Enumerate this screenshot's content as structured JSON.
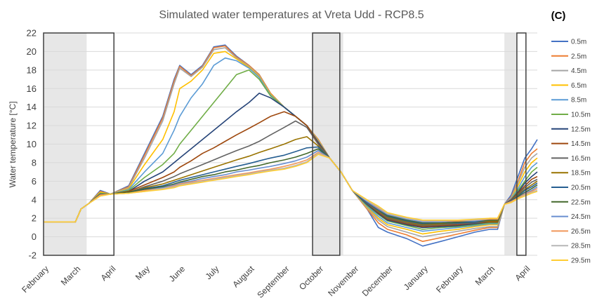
{
  "chart_data": {
    "type": "line",
    "title": "Simulated water temperatures at Vreta Udd - RCP8.5",
    "panel_label": "(C)",
    "xlabel": "",
    "ylabel": "Water temperature [°C]",
    "ylim": [
      -2,
      22
    ],
    "yticks": [
      -2,
      0,
      2,
      4,
      6,
      8,
      10,
      12,
      14,
      16,
      18,
      20,
      22
    ],
    "grid": "horizontal",
    "legend_position": "right",
    "x_unit": "days since start of February",
    "xlim": [
      0,
      435
    ],
    "month_ticks": [
      {
        "label": "February",
        "x": 0
      },
      {
        "label": "March",
        "x": 28
      },
      {
        "label": "April",
        "x": 59
      },
      {
        "label": "May",
        "x": 89
      },
      {
        "label": "June",
        "x": 120
      },
      {
        "label": "July",
        "x": 150
      },
      {
        "label": "August",
        "x": 181
      },
      {
        "label": "September",
        "x": 212
      },
      {
        "label": "October",
        "x": 242
      },
      {
        "label": "November",
        "x": 273
      },
      {
        "label": "December",
        "x": 303
      },
      {
        "label": "January",
        "x": 334
      },
      {
        "label": "February",
        "x": 365
      },
      {
        "label": "March",
        "x": 393
      },
      {
        "label": "April",
        "x": 424
      }
    ],
    "shaded_periods": [
      {
        "x": [
          0,
          38
        ]
      },
      {
        "x": [
          237,
          264
        ]
      },
      {
        "x": [
          406,
          417
        ]
      }
    ],
    "boxed_periods": [
      {
        "x": [
          0,
          62
        ]
      },
      {
        "x": [
          237,
          261
        ]
      },
      {
        "x": [
          417,
          425
        ]
      }
    ],
    "x": [
      0,
      15,
      28,
      33,
      40,
      50,
      59,
      75,
      89,
      105,
      115,
      120,
      130,
      140,
      150,
      160,
      170,
      181,
      190,
      200,
      212,
      222,
      232,
      242,
      252,
      262,
      272,
      285,
      295,
      303,
      320,
      334,
      350,
      365,
      380,
      393,
      400,
      406,
      412,
      418,
      424,
      430,
      435
    ],
    "series": [
      {
        "name": "0.5m",
        "color": "#4472C4",
        "values": [
          1.6,
          1.6,
          1.6,
          3.0,
          3.6,
          5.0,
          4.6,
          5.5,
          9.0,
          13.0,
          17.0,
          18.5,
          17.5,
          18.5,
          20.5,
          20.7,
          19.5,
          18.5,
          17.5,
          15.5,
          14.0,
          13.0,
          12.0,
          10.5,
          8.5,
          7.0,
          5.0,
          3.0,
          1.0,
          0.5,
          -0.2,
          -1.0,
          -0.5,
          0.0,
          0.5,
          0.8,
          0.8,
          3.5,
          4.5,
          6.5,
          8.5,
          9.5,
          10.5
        ]
      },
      {
        "name": "2.5m",
        "color": "#ED7D31",
        "values": [
          1.6,
          1.6,
          1.6,
          3.0,
          3.6,
          4.9,
          4.6,
          5.4,
          8.8,
          12.8,
          16.8,
          18.4,
          17.4,
          18.4,
          20.4,
          20.6,
          19.4,
          18.5,
          17.5,
          15.5,
          14.0,
          13.0,
          12.0,
          10.5,
          8.5,
          7.0,
          5.0,
          3.0,
          1.5,
          0.8,
          0.2,
          -0.5,
          -0.1,
          0.3,
          0.7,
          1.0,
          1.0,
          3.5,
          4.3,
          6.0,
          8.0,
          9.0,
          9.5
        ]
      },
      {
        "name": "4.5m",
        "color": "#A5A5A5",
        "values": [
          1.6,
          1.6,
          1.6,
          3.0,
          3.6,
          4.8,
          4.6,
          5.3,
          8.5,
          12.5,
          16.5,
          18.2,
          17.3,
          18.3,
          20.2,
          20.4,
          19.3,
          18.4,
          17.4,
          15.4,
          14.0,
          13.0,
          12.0,
          10.4,
          8.5,
          7.0,
          5.0,
          3.1,
          1.8,
          1.1,
          0.5,
          0.0,
          0.3,
          0.6,
          0.9,
          1.1,
          1.1,
          3.5,
          4.2,
          5.8,
          7.5,
          8.5,
          9.0
        ]
      },
      {
        "name": "6.5m",
        "color": "#FFC000",
        "values": [
          1.6,
          1.6,
          1.6,
          3.0,
          3.6,
          4.8,
          4.6,
          5.2,
          7.8,
          10.5,
          13.5,
          16.0,
          16.8,
          18.0,
          19.8,
          20.0,
          19.2,
          18.3,
          17.3,
          15.4,
          14.0,
          13.0,
          12.0,
          10.4,
          8.5,
          7.0,
          5.0,
          3.2,
          2.0,
          1.3,
          0.8,
          0.3,
          0.6,
          0.8,
          1.1,
          1.3,
          1.3,
          3.5,
          4.1,
          5.5,
          7.0,
          8.0,
          8.5
        ]
      },
      {
        "name": "8.5m",
        "color": "#5B9BD5",
        "values": [
          1.6,
          1.6,
          1.6,
          3.0,
          3.6,
          4.7,
          4.6,
          5.1,
          7.0,
          9.0,
          11.5,
          13.0,
          15.0,
          16.5,
          18.5,
          19.3,
          19.0,
          18.2,
          17.2,
          15.3,
          14.0,
          13.0,
          12.0,
          10.3,
          8.5,
          7.0,
          5.0,
          3.3,
          2.2,
          1.5,
          1.0,
          0.6,
          0.8,
          1.0,
          1.2,
          1.4,
          1.4,
          3.5,
          4.1,
          5.2,
          6.5,
          7.5,
          8.0
        ]
      },
      {
        "name": "10.5m",
        "color": "#70AD47",
        "values": [
          1.6,
          1.6,
          1.6,
          3.0,
          3.6,
          4.7,
          4.6,
          5.0,
          6.4,
          7.8,
          9.0,
          10.0,
          11.5,
          13.0,
          14.5,
          16.0,
          17.5,
          18.0,
          17.0,
          15.2,
          14.0,
          13.0,
          12.0,
          10.2,
          8.5,
          7.0,
          5.0,
          3.4,
          2.4,
          1.7,
          1.2,
          0.8,
          1.0,
          1.1,
          1.3,
          1.5,
          1.5,
          3.5,
          4.0,
          5.0,
          6.0,
          7.0,
          7.5
        ]
      },
      {
        "name": "12.5m",
        "color": "#264478",
        "values": [
          1.6,
          1.6,
          1.6,
          3.0,
          3.6,
          4.6,
          4.6,
          4.9,
          6.0,
          7.0,
          8.0,
          8.5,
          9.5,
          10.5,
          11.5,
          12.5,
          13.5,
          14.5,
          15.5,
          15.0,
          14.0,
          13.0,
          12.0,
          10.2,
          8.5,
          7.0,
          5.0,
          3.5,
          2.5,
          1.8,
          1.3,
          1.0,
          1.1,
          1.2,
          1.4,
          1.6,
          1.6,
          3.5,
          4.0,
          4.8,
          5.8,
          6.5,
          7.0
        ]
      },
      {
        "name": "14.5m",
        "color": "#9E480E",
        "values": [
          1.6,
          1.6,
          1.6,
          3.0,
          3.6,
          4.6,
          4.6,
          4.9,
          5.6,
          6.4,
          7.0,
          7.5,
          8.2,
          9.0,
          9.6,
          10.3,
          11.0,
          11.7,
          12.3,
          13.0,
          13.5,
          13.0,
          12.0,
          10.1,
          8.5,
          7.0,
          5.0,
          3.6,
          2.6,
          1.9,
          1.4,
          1.1,
          1.2,
          1.3,
          1.5,
          1.6,
          1.6,
          3.5,
          4.0,
          4.7,
          5.5,
          6.2,
          6.5
        ]
      },
      {
        "name": "16.5m",
        "color": "#636363",
        "values": [
          1.6,
          1.6,
          1.6,
          3.0,
          3.6,
          4.6,
          4.6,
          4.8,
          5.4,
          6.0,
          6.5,
          6.8,
          7.3,
          7.8,
          8.3,
          8.8,
          9.3,
          9.8,
          10.3,
          11.0,
          11.8,
          12.5,
          11.8,
          10.0,
          8.5,
          7.0,
          5.0,
          3.6,
          2.7,
          2.0,
          1.5,
          1.2,
          1.3,
          1.4,
          1.5,
          1.7,
          1.7,
          3.5,
          3.9,
          4.6,
          5.3,
          5.9,
          6.2
        ]
      },
      {
        "name": "18.5m",
        "color": "#997300",
        "values": [
          1.6,
          1.6,
          1.6,
          3.0,
          3.6,
          4.5,
          4.6,
          4.8,
          5.3,
          5.7,
          6.1,
          6.3,
          6.7,
          7.1,
          7.5,
          7.9,
          8.3,
          8.7,
          9.1,
          9.5,
          10.0,
          10.5,
          10.8,
          9.8,
          8.5,
          7.0,
          5.0,
          3.7,
          2.8,
          2.1,
          1.6,
          1.3,
          1.4,
          1.5,
          1.6,
          1.7,
          1.7,
          3.5,
          3.9,
          4.5,
          5.1,
          5.6,
          6.0
        ]
      },
      {
        "name": "20.5m",
        "color": "#255E91",
        "values": [
          1.6,
          1.6,
          1.6,
          3.0,
          3.6,
          4.5,
          4.6,
          4.8,
          5.2,
          5.5,
          5.9,
          6.1,
          6.4,
          6.7,
          7.0,
          7.3,
          7.6,
          7.9,
          8.2,
          8.5,
          8.8,
          9.2,
          9.6,
          9.7,
          8.5,
          7.0,
          5.0,
          3.7,
          2.9,
          2.2,
          1.7,
          1.4,
          1.5,
          1.5,
          1.6,
          1.8,
          1.8,
          3.5,
          3.9,
          4.4,
          5.0,
          5.4,
          5.8
        ]
      },
      {
        "name": "22.5m",
        "color": "#43682B",
        "values": [
          1.6,
          1.6,
          1.6,
          3.0,
          3.6,
          4.5,
          4.6,
          4.8,
          5.1,
          5.4,
          5.7,
          5.9,
          6.2,
          6.5,
          6.7,
          7.0,
          7.2,
          7.5,
          7.7,
          8.0,
          8.3,
          8.6,
          9.0,
          9.5,
          8.5,
          7.0,
          5.0,
          3.8,
          3.0,
          2.3,
          1.8,
          1.5,
          1.5,
          1.6,
          1.7,
          1.8,
          1.8,
          3.5,
          3.8,
          4.3,
          4.8,
          5.2,
          5.6
        ]
      },
      {
        "name": "24.5m",
        "color": "#698ED0",
        "values": [
          1.6,
          1.6,
          1.6,
          3.0,
          3.6,
          4.5,
          4.6,
          4.7,
          5.0,
          5.3,
          5.6,
          5.8,
          6.0,
          6.3,
          6.5,
          6.7,
          7.0,
          7.2,
          7.4,
          7.6,
          7.9,
          8.2,
          8.6,
          9.3,
          8.5,
          7.0,
          5.0,
          3.8,
          3.0,
          2.4,
          1.9,
          1.6,
          1.6,
          1.7,
          1.7,
          1.9,
          1.9,
          3.5,
          3.8,
          4.2,
          4.7,
          5.0,
          5.4
        ]
      },
      {
        "name": "26.5m",
        "color": "#F1975A",
        "values": [
          1.6,
          1.6,
          1.6,
          3.0,
          3.6,
          4.5,
          4.6,
          4.7,
          5.0,
          5.2,
          5.5,
          5.7,
          5.9,
          6.1,
          6.3,
          6.5,
          6.7,
          6.9,
          7.1,
          7.3,
          7.6,
          7.9,
          8.3,
          9.1,
          8.5,
          7.0,
          5.0,
          3.9,
          3.1,
          2.5,
          2.0,
          1.7,
          1.7,
          1.7,
          1.8,
          1.9,
          1.9,
          3.5,
          3.8,
          4.2,
          4.6,
          4.9,
          5.2
        ]
      },
      {
        "name": "28.5m",
        "color": "#B7B7B7",
        "values": [
          1.6,
          1.6,
          1.6,
          3.0,
          3.6,
          4.4,
          4.6,
          4.7,
          4.9,
          5.2,
          5.4,
          5.6,
          5.8,
          6.0,
          6.2,
          6.4,
          6.6,
          6.8,
          7.0,
          7.2,
          7.4,
          7.7,
          8.1,
          9.0,
          8.5,
          7.0,
          5.0,
          3.9,
          3.2,
          2.5,
          2.0,
          1.7,
          1.7,
          1.8,
          1.8,
          2.0,
          2.0,
          3.5,
          3.7,
          4.1,
          4.5,
          4.8,
          5.0
        ]
      },
      {
        "name": "29.5m",
        "color": "#FFCD33",
        "values": [
          1.6,
          1.6,
          1.6,
          3.0,
          3.6,
          4.4,
          4.6,
          4.7,
          4.9,
          5.1,
          5.3,
          5.5,
          5.7,
          5.9,
          6.1,
          6.3,
          6.5,
          6.7,
          6.9,
          7.1,
          7.3,
          7.6,
          8.0,
          8.9,
          8.5,
          7.0,
          5.0,
          4.0,
          3.3,
          2.6,
          2.1,
          1.8,
          1.8,
          1.8,
          1.9,
          2.0,
          2.0,
          3.5,
          3.7,
          4.1,
          4.4,
          4.7,
          4.9
        ]
      }
    ]
  }
}
